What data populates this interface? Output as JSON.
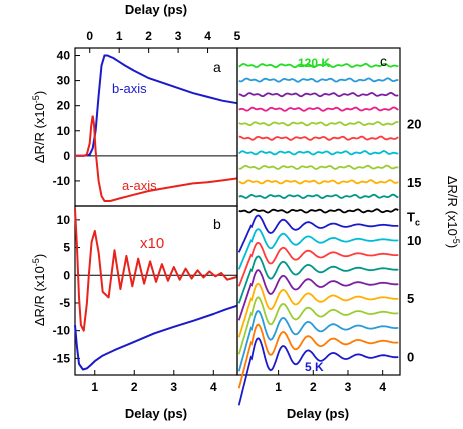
{
  "colors": {
    "b_axis": "#1a1acc",
    "a_axis": "#e8231c",
    "black": "#000000",
    "frame": "#000000",
    "fit": "#555555"
  },
  "chart_data": [
    {
      "panel": "a",
      "type": "line",
      "title": "",
      "xlabel": "Delay (ps)",
      "ylabel": "ΔR/R (x10",
      "ylabel_sup": "-5",
      "ylabel_close": ")",
      "xlim": [
        -0.5,
        5
      ],
      "ylim": [
        -20,
        43
      ],
      "xticks": [
        0,
        1,
        2,
        3,
        4,
        5
      ],
      "yticks": [
        -10,
        0,
        10,
        20,
        30,
        40
      ],
      "zero_line": true,
      "series": [
        {
          "name": "b-axis",
          "color": "#1a1acc",
          "x": [
            -0.5,
            -0.2,
            0.0,
            0.1,
            0.2,
            0.3,
            0.4,
            0.5,
            0.6,
            0.7,
            0.8,
            1.0,
            1.2,
            1.5,
            2.0,
            2.5,
            3.0,
            3.5,
            4.0,
            4.5,
            5.0
          ],
          "y": [
            0,
            0,
            0.5,
            3,
            10,
            24,
            36,
            40,
            40,
            39.5,
            39,
            37.5,
            36,
            34,
            31,
            29,
            27,
            25,
            23.5,
            22,
            21
          ]
        },
        {
          "name": "a-axis",
          "color": "#e8231c",
          "x": [
            -0.5,
            -0.2,
            -0.1,
            0.0,
            0.05,
            0.1,
            0.15,
            0.2,
            0.3,
            0.4,
            0.5,
            0.7,
            1.0,
            1.5,
            2.0,
            2.5,
            3.0,
            3.5,
            4.0,
            4.5,
            5.0
          ],
          "y": [
            0,
            0,
            0.5,
            5,
            12,
            16,
            12,
            2,
            -10,
            -16,
            -18,
            -18,
            -17,
            -15.5,
            -14,
            -13,
            -12,
            -11,
            -10.5,
            -9.8,
            -9
          ]
        }
      ],
      "annotations": [
        "b-axis",
        "a-axis",
        "a"
      ]
    },
    {
      "panel": "b",
      "type": "line",
      "title": "",
      "xlabel": "Delay (ps)",
      "ylabel": "ΔR/R (x10",
      "ylabel_sup": "-5",
      "ylabel_close": ")",
      "xlim": [
        0.5,
        4.6
      ],
      "ylim": [
        -18,
        12.5
      ],
      "xticks": [
        1,
        2,
        3,
        4
      ],
      "yticks": [
        -15,
        -10,
        -5,
        0,
        5,
        10
      ],
      "zero_line": true,
      "series": [
        {
          "name": "x10",
          "color": "#e8231c",
          "x": [
            0.5,
            0.55,
            0.6,
            0.65,
            0.72,
            0.8,
            0.85,
            0.92,
            1.0,
            1.1,
            1.2,
            1.35,
            1.5,
            1.65,
            1.8,
            1.95,
            2.1,
            2.25,
            2.4,
            2.55,
            2.7,
            2.85,
            3.0,
            3.15,
            3.3,
            3.45,
            3.6,
            3.75,
            3.9,
            4.05,
            4.2,
            4.35,
            4.5,
            4.6
          ],
          "y": [
            12,
            5,
            -4,
            -9,
            -10,
            -5,
            0,
            6,
            8,
            4,
            -3,
            -4,
            4.5,
            -2.5,
            3.5,
            -2,
            3,
            -1.5,
            2.5,
            -1.2,
            2,
            -1,
            1.5,
            -0.8,
            1.2,
            -0.6,
            0.9,
            -0.4,
            0.7,
            -0.2,
            0.4,
            -0.8,
            -0.5,
            -0.3
          ]
        },
        {
          "name": "blue trace",
          "color": "#1a1acc",
          "x": [
            0.5,
            0.55,
            0.6,
            0.7,
            0.8,
            0.9,
            1.0,
            1.2,
            1.5,
            2.0,
            2.5,
            3.0,
            3.5,
            4.0,
            4.3,
            4.6
          ],
          "y": [
            -9,
            -13,
            -16,
            -17,
            -16.8,
            -16.2,
            -15.5,
            -14.5,
            -13.5,
            -12,
            -10.5,
            -9.3,
            -8.2,
            -7,
            -6.2,
            -5.5
          ]
        }
      ],
      "annotations": [
        "x10",
        "b"
      ]
    },
    {
      "panel": "c",
      "type": "line",
      "title": "",
      "xlabel": "Delay (ps)",
      "ylabel": "ΔR/R (x10",
      "ylabel_sup": "-5",
      "ylabel_close": ")",
      "xlim": [
        -0.2,
        4.5
      ],
      "ylim": [
        -1.6,
        26.5
      ],
      "xticks": [
        1,
        2,
        3,
        4
      ],
      "yticks": [
        0,
        5,
        10,
        15,
        20
      ],
      "right_axis_labels": [
        "20",
        "15",
        "T",
        "10",
        "5",
        "0"
      ],
      "right_axis_label_values": [
        20,
        15,
        12,
        10,
        5,
        0
      ],
      "tc_subscript": "c",
      "temperature_labels": [
        "120 K",
        "5 K"
      ],
      "offset_step": 1.25,
      "traces": [
        {
          "color": "#1a1acc",
          "amp": 2.0,
          "offset": 0
        },
        {
          "color": "#ff7a00",
          "amp": 1.9,
          "offset": 1.25
        },
        {
          "color": "#2a9ad8",
          "amp": 1.8,
          "offset": 2.5
        },
        {
          "color": "#9acd32",
          "amp": 1.7,
          "offset": 3.75
        },
        {
          "color": "#ffb000",
          "amp": 1.6,
          "offset": 5.0
        },
        {
          "color": "#7b1fa2",
          "amp": 1.5,
          "offset": 6.25
        },
        {
          "color": "#009688",
          "amp": 1.4,
          "offset": 7.5
        },
        {
          "color": "#ff3b3b",
          "amp": 1.3,
          "offset": 8.75
        },
        {
          "color": "#00bcd4",
          "amp": 1.2,
          "offset": 10.0
        },
        {
          "color": "#1a1acc",
          "amp": 1.1,
          "offset": 11.25
        },
        {
          "color": "#000000",
          "amp": 0.15,
          "offset": 12.5
        },
        {
          "color": "#009688",
          "amp": 0.15,
          "offset": 13.75
        },
        {
          "color": "#ffb000",
          "amp": 0.15,
          "offset": 15.0
        },
        {
          "color": "#9acd32",
          "amp": 0.15,
          "offset": 16.25
        },
        {
          "color": "#00bcd4",
          "amp": 0.15,
          "offset": 17.5
        },
        {
          "color": "#ff3b3b",
          "amp": 0.15,
          "offset": 18.75
        },
        {
          "color": "#9acd32",
          "amp": 0.15,
          "offset": 20.0
        },
        {
          "color": "#e91e8c",
          "amp": 0.15,
          "offset": 21.25
        },
        {
          "color": "#7b1fa2",
          "amp": 0.15,
          "offset": 22.5
        },
        {
          "color": "#2a9ad8",
          "amp": 0.15,
          "offset": 23.75
        },
        {
          "color": "#22dd22",
          "amp": 0.15,
          "offset": 25.0
        }
      ]
    }
  ]
}
